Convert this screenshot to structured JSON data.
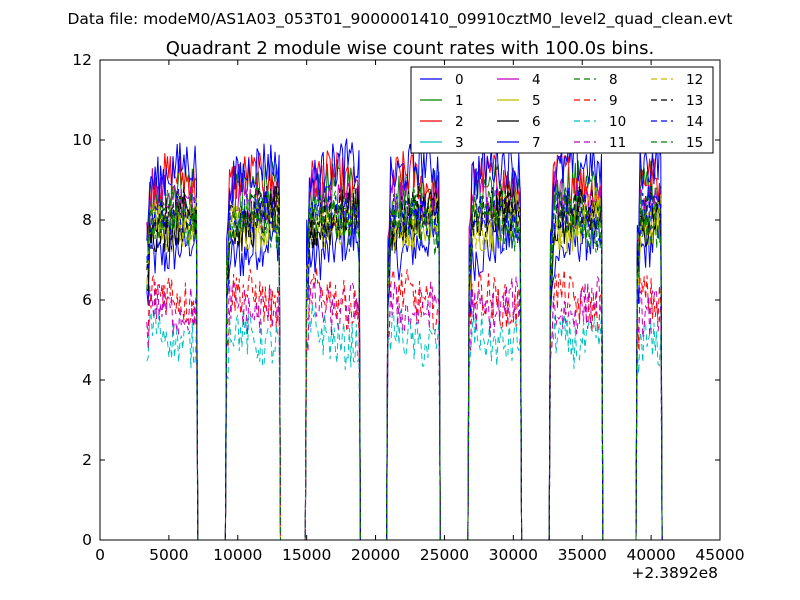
{
  "suptitle": "Data file: modeM0/AS1A03_053T01_9000001410_09910cztM0_level2_quad_clean.evt",
  "chart_data": {
    "type": "line",
    "title": "Quadrant 2 module wise count rates with 100.0s bins.",
    "xlabel": "",
    "ylabel": "",
    "xlim": [
      0,
      45000
    ],
    "ylim": [
      0,
      12
    ],
    "x_offset_label": "+2.3892e8",
    "x_ticks": [
      "0",
      "5000",
      "10000",
      "15000",
      "20000",
      "25000",
      "30000",
      "35000",
      "40000",
      "45000"
    ],
    "y_ticks": [
      "0",
      "2",
      "4",
      "6",
      "8",
      "10",
      "12"
    ],
    "grid": false,
    "legend_position": "top-right",
    "bin_size_s": 100,
    "on_intervals": [
      [
        3400,
        7000
      ],
      [
        9200,
        13000
      ],
      [
        15000,
        18800
      ],
      [
        20900,
        24600
      ],
      [
        26800,
        30500
      ],
      [
        32700,
        36400
      ],
      [
        39000,
        40700
      ]
    ],
    "series": [
      {
        "name": "0",
        "color": "#0000ff",
        "style": "solid",
        "mean_rate": 7.3
      },
      {
        "name": "1",
        "color": "#008000",
        "style": "solid",
        "mean_rate": 8.7
      },
      {
        "name": "2",
        "color": "#ff0000",
        "style": "solid",
        "mean_rate": 8.9
      },
      {
        "name": "3",
        "color": "#00bfbf",
        "style": "solid",
        "mean_rate": 0.0
      },
      {
        "name": "4",
        "color": "#bf00bf",
        "style": "solid",
        "mean_rate": 8.6
      },
      {
        "name": "5",
        "color": "#bfbf00",
        "style": "solid",
        "mean_rate": 8.0
      },
      {
        "name": "6",
        "color": "#000000",
        "style": "solid",
        "mean_rate": 8.0
      },
      {
        "name": "7",
        "color": "#0000ff",
        "style": "solid",
        "mean_rate": 9.2
      },
      {
        "name": "8",
        "color": "#008000",
        "style": "dashed",
        "mean_rate": 8.1
      },
      {
        "name": "9",
        "color": "#ff0000",
        "style": "dashed",
        "mean_rate": 6.0
      },
      {
        "name": "10",
        "color": "#00bfbf",
        "style": "dashed",
        "mean_rate": 5.1
      },
      {
        "name": "11",
        "color": "#bf00bf",
        "style": "dashed",
        "mean_rate": 5.9
      },
      {
        "name": "12",
        "color": "#bfbf00",
        "style": "dashed",
        "mean_rate": 8.0
      },
      {
        "name": "13",
        "color": "#000000",
        "style": "dashed",
        "mean_rate": 8.1
      },
      {
        "name": "14",
        "color": "#0000ff",
        "style": "dashed",
        "mean_rate": 8.0
      },
      {
        "name": "15",
        "color": "#008000",
        "style": "dashed",
        "mean_rate": 7.9
      }
    ]
  }
}
